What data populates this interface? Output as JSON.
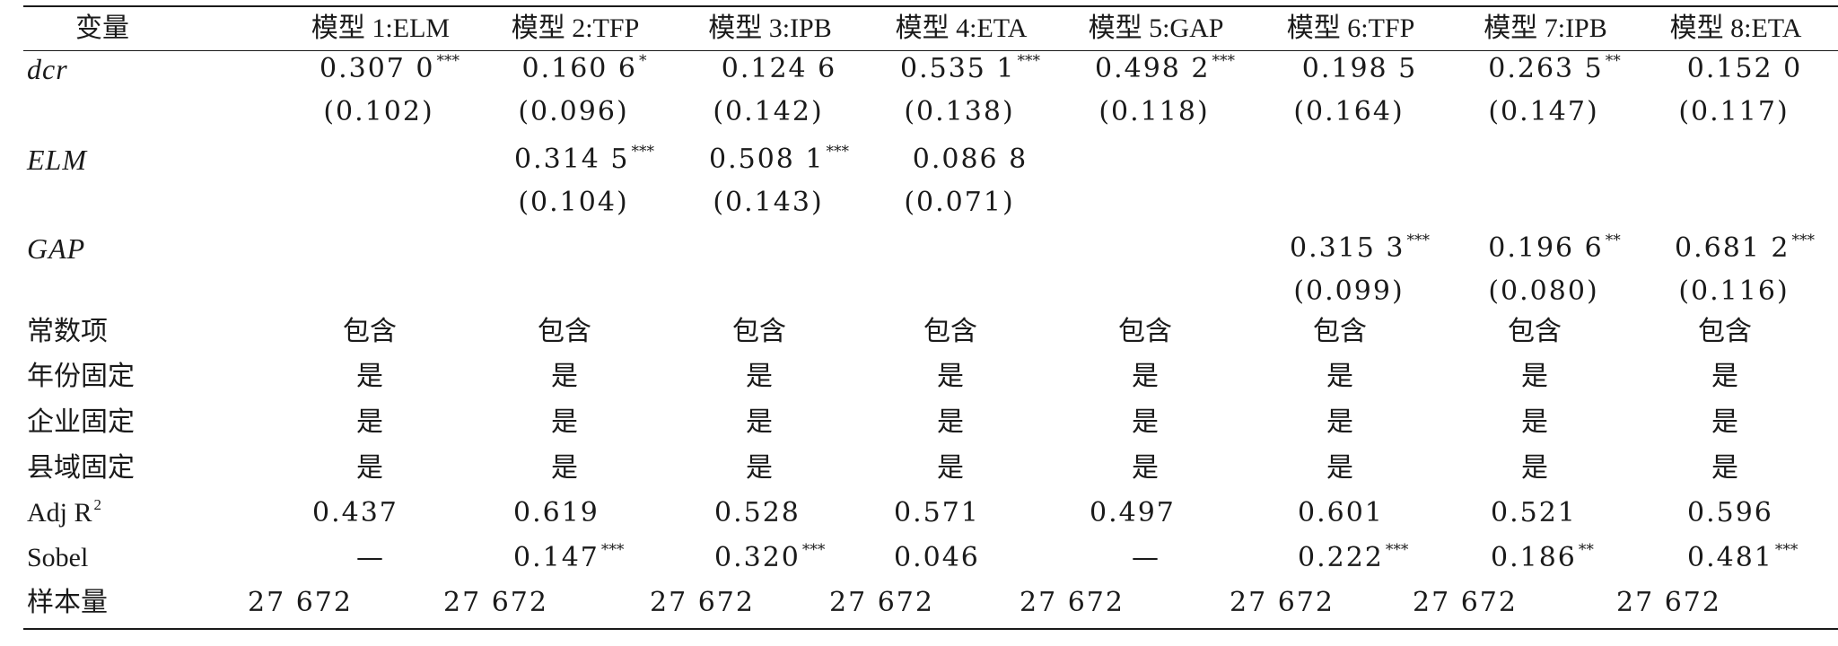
{
  "table": {
    "header": {
      "variable": "变量",
      "models": [
        "模型 1:ELM",
        "模型 2:TFP",
        "模型 3:IPB",
        "模型 4:ETA",
        "模型 5:GAP",
        "模型 6:TFP",
        "模型 7:IPB",
        "模型 8:ETA"
      ]
    },
    "rows": [
      {
        "label": "dcr",
        "italic": true,
        "coef": [
          "0.307 0",
          "0.160 6",
          "0.124 6",
          "0.535 1",
          "0.498 2",
          "0.198 5",
          "0.263 5",
          "0.152 0"
        ],
        "stars": [
          "***",
          "*",
          "",
          "***",
          "***",
          "",
          "**",
          ""
        ],
        "se": [
          "(0.102)",
          "(0.096)",
          "(0.142)",
          "(0.138)",
          "(0.118)",
          "(0.164)",
          "(0.147)",
          "(0.117)"
        ]
      },
      {
        "label": "ELM",
        "italic": true,
        "coef": [
          "",
          "0.314 5",
          "0.508 1",
          "0.086 8",
          "",
          "",
          "",
          ""
        ],
        "stars": [
          "",
          "***",
          "***",
          "",
          "",
          "",
          "",
          ""
        ],
        "se": [
          "",
          "(0.104)",
          "(0.143)",
          "(0.071)",
          "",
          "",
          "",
          ""
        ]
      },
      {
        "label": "GAP",
        "italic": true,
        "coef": [
          "",
          "",
          "",
          "",
          "",
          "0.315 3",
          "0.196 6",
          "0.681 2"
        ],
        "stars": [
          "",
          "",
          "",
          "",
          "",
          "***",
          "**",
          "***"
        ],
        "se": [
          "",
          "",
          "",
          "",
          "",
          "(0.099)",
          "(0.080)",
          "(0.116)"
        ]
      },
      {
        "label": "常数项",
        "values": [
          "包含",
          "包含",
          "包含",
          "包含",
          "包含",
          "包含",
          "包含",
          "包含"
        ]
      },
      {
        "label": "年份固定",
        "values": [
          "是",
          "是",
          "是",
          "是",
          "是",
          "是",
          "是",
          "是"
        ]
      },
      {
        "label": "企业固定",
        "values": [
          "是",
          "是",
          "是",
          "是",
          "是",
          "是",
          "是",
          "是"
        ]
      },
      {
        "label": "县域固定",
        "values": [
          "是",
          "是",
          "是",
          "是",
          "是",
          "是",
          "是",
          "是"
        ]
      },
      {
        "label": "Adj R",
        "label_sup": "2",
        "values": [
          "0.437",
          "0.619",
          "0.528",
          "0.571",
          "0.497",
          "0.601",
          "0.521",
          "0.596"
        ]
      },
      {
        "label": "Sobel",
        "values": [
          "—",
          "0.147",
          "0.320",
          "0.046",
          "—",
          "0.222",
          "0.186",
          "0.481"
        ],
        "stars": [
          "",
          "***",
          "***",
          "",
          "",
          "***",
          "**",
          "***"
        ]
      },
      {
        "label": "样本量",
        "values": [
          "27 672",
          "27 672",
          "27 672",
          "27 672",
          "27 672",
          "27 672",
          "27 672",
          "27 672"
        ]
      }
    ]
  }
}
